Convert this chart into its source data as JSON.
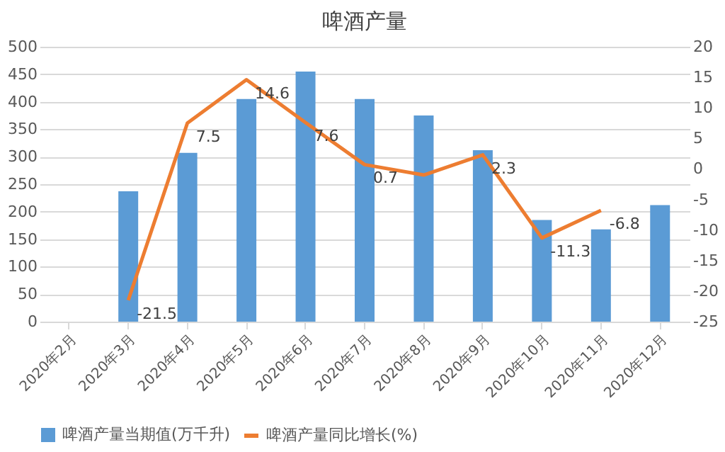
{
  "chart_data": {
    "type": "bar",
    "title": "啤酒产量",
    "categories": [
      "2020年2月",
      "2020年3月",
      "2020年4月",
      "2020年5月",
      "2020年6月",
      "2020年7月",
      "2020年8月",
      "2020年9月",
      "2020年10月",
      "2020年11月",
      "2020年12月"
    ],
    "series": [
      {
        "name": "啤酒产量当期值(万千升)",
        "color": "#5b9bd5",
        "values": [
          null,
          237,
          307,
          405,
          455,
          405,
          375,
          312,
          185,
          168,
          212
        ]
      },
      {
        "name": "啤酒产量同比增长(%)",
        "type": "line",
        "axis": "y2",
        "color": "#ed7d31",
        "values": [
          null,
          -21.5,
          7.5,
          14.6,
          7.6,
          0.7,
          -1.0,
          2.3,
          -11.3,
          -6.8,
          null
        ],
        "value_labels": [
          null,
          "-21.5",
          "7.5",
          "14.6",
          "7.6",
          "0.7",
          null,
          "2.3",
          "-11.3",
          "-6.8",
          null
        ]
      }
    ],
    "ylim": [
      0,
      500
    ],
    "yticks": [
      0,
      50,
      100,
      150,
      200,
      250,
      300,
      350,
      400,
      450,
      500
    ],
    "y2lim": [
      -25,
      20
    ],
    "y2ticks": [
      -25,
      -20,
      -15,
      -10,
      -5,
      0,
      5,
      10,
      15,
      20
    ],
    "grid": "y",
    "legend": "bottom"
  }
}
